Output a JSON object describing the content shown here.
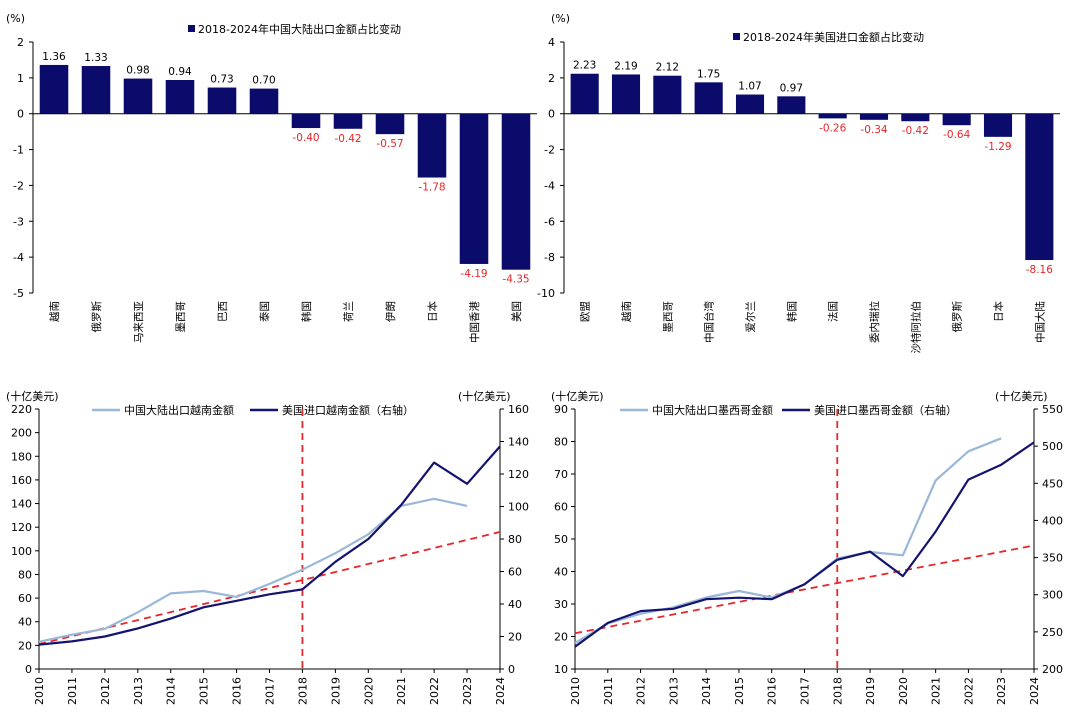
{
  "colors": {
    "bar": "#0b0b6b",
    "line_light": "#9ab7d8",
    "line_dark": "#141470",
    "trend": "#e8262b",
    "neg_label": "#e8262b"
  },
  "chart_data": [
    {
      "id": "c1",
      "type": "bar",
      "unit": "(%)",
      "legend": "2018-2024年中国大陆出口金额占比变动",
      "categories": [
        "越南",
        "俄罗斯",
        "马来西亚",
        "墨西哥",
        "巴西",
        "泰国",
        "韩国",
        "荷兰",
        "伊朗",
        "日本",
        "中国香港",
        "美国"
      ],
      "values": [
        1.36,
        1.33,
        0.98,
        0.94,
        0.73,
        0.7,
        -0.4,
        -0.42,
        -0.57,
        -1.78,
        -4.19,
        -4.35
      ],
      "labels": [
        "1.36",
        "1.33",
        "0.98",
        "0.94",
        "0.73",
        "0.70",
        "-0.40",
        "-0.42",
        "-0.57",
        "-1.78",
        "-4.19",
        "-4.35"
      ],
      "ylim": [
        -5,
        2
      ],
      "yticks": [
        2,
        1,
        0,
        -1,
        -2,
        -3,
        -4,
        -5
      ]
    },
    {
      "id": "c2",
      "type": "bar",
      "unit": "(%)",
      "legend": "2018-2024年美国进口金额占比变动",
      "categories": [
        "欧盟",
        "越南",
        "墨西哥",
        "中国台湾",
        "爱尔兰",
        "韩国",
        "法国",
        "委内瑞拉",
        "沙特阿拉伯",
        "俄罗斯",
        "日本",
        "中国大陆"
      ],
      "values": [
        2.23,
        2.19,
        2.12,
        1.75,
        1.07,
        0.97,
        -0.26,
        -0.34,
        -0.42,
        -0.64,
        -1.29,
        -8.16
      ],
      "labels": [
        "2.23",
        "2.19",
        "2.12",
        "1.75",
        "1.07",
        "0.97",
        "-0.26",
        "-0.34",
        "-0.42",
        "-0.64",
        "-1.29",
        "-8.16"
      ],
      "ylim": [
        -10,
        4
      ],
      "yticks": [
        4,
        2,
        0,
        -2,
        -4,
        -6,
        -8,
        -10
      ]
    },
    {
      "id": "c3",
      "type": "line",
      "left_unit": "(十亿美元)",
      "right_unit": "(十亿美元)",
      "x": [
        "2010",
        "2011",
        "2012",
        "2013",
        "2014",
        "2015",
        "2016",
        "2017",
        "2018",
        "2019",
        "2020",
        "2021",
        "2022",
        "2023",
        "2024"
      ],
      "ylim_left": [
        0,
        220
      ],
      "yticks_left": [
        0,
        20,
        40,
        60,
        80,
        100,
        120,
        140,
        160,
        180,
        200,
        220
      ],
      "ylim_right": [
        0,
        160
      ],
      "yticks_right": [
        0,
        20,
        40,
        60,
        80,
        100,
        120,
        140,
        160
      ],
      "vline_x": "2018",
      "series": [
        {
          "name": "中国大陆出口越南金额",
          "axis": "left",
          "style": "light",
          "values": [
            23,
            29,
            34,
            48,
            64,
            66,
            61,
            72,
            84,
            98,
            114,
            138,
            144,
            138,
            null
          ]
        },
        {
          "name": "美国进口越南金额（右轴）",
          "axis": "right",
          "style": "dark",
          "values": [
            15,
            17,
            20,
            25,
            31,
            38,
            42,
            46,
            49,
            66,
            80,
            101,
            127,
            114,
            137
          ]
        }
      ],
      "trend": {
        "axis": "left",
        "x0": "2010",
        "y0": 21,
        "x1": "2024",
        "y1": 116
      }
    },
    {
      "id": "c4",
      "type": "line",
      "left_unit": "(十亿美元)",
      "right_unit": "(十亿美元)",
      "x": [
        "2010",
        "2011",
        "2012",
        "2013",
        "2014",
        "2015",
        "2016",
        "2017",
        "2018",
        "2019",
        "2020",
        "2021",
        "2022",
        "2023",
        "2024"
      ],
      "ylim_left": [
        10,
        90
      ],
      "yticks_left": [
        10,
        20,
        30,
        40,
        50,
        60,
        70,
        80,
        90
      ],
      "ylim_right": [
        200,
        550
      ],
      "yticks_right": [
        200,
        250,
        300,
        350,
        400,
        450,
        500,
        550
      ],
      "vline_x": "2018",
      "series": [
        {
          "name": "中国大陆出口墨西哥金额",
          "axis": "left",
          "style": "light",
          "values": [
            18,
            24,
            27,
            29,
            32,
            34,
            32,
            36,
            44,
            46,
            45,
            68,
            77,
            81,
            null
          ]
        },
        {
          "name": "美国进口墨西哥金额（右轴）",
          "axis": "right",
          "style": "dark",
          "values": [
            230,
            262,
            278,
            281,
            294,
            296,
            294,
            314,
            347,
            358,
            325,
            385,
            455,
            475,
            505
          ]
        }
      ],
      "trend": {
        "axis": "left",
        "x0": "2010",
        "y0": 21,
        "x1": "2024",
        "y1": 48
      }
    }
  ]
}
